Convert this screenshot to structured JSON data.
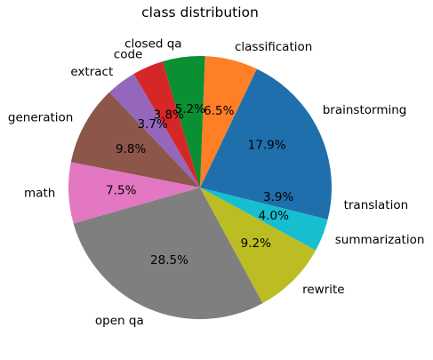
{
  "chart_data": {
    "type": "pie",
    "title": "class distribution",
    "start_angle_deg": 0,
    "direction": "counterclockwise",
    "slices": [
      {
        "label": "brainstorming",
        "pct_label": "17.9%",
        "value": 17.9,
        "color": "#1f6fad"
      },
      {
        "label": "classification",
        "pct_label": "6.5%",
        "value": 6.5,
        "color": "#ff7f27"
      },
      {
        "label": "closed qa",
        "pct_label": "5.2%",
        "value": 5.2,
        "color": "#0a8f33"
      },
      {
        "label": "code",
        "pct_label": "3.8%",
        "value": 3.8,
        "color": "#d62728"
      },
      {
        "label": "extract",
        "pct_label": "3.7%",
        "value": 3.7,
        "color": "#9467bd"
      },
      {
        "label": "generation",
        "pct_label": "9.8%",
        "value": 9.8,
        "color": "#8c564b"
      },
      {
        "label": "math",
        "pct_label": "7.5%",
        "value": 7.5,
        "color": "#e377c2"
      },
      {
        "label": "open qa",
        "pct_label": "28.5%",
        "value": 28.5,
        "color": "#7f7f7f"
      },
      {
        "label": "rewrite",
        "pct_label": "9.2%",
        "value": 9.2,
        "color": "#bcbd22"
      },
      {
        "label": "summarization",
        "pct_label": "4.0%",
        "value": 4.0,
        "color": "#17becf"
      },
      {
        "label": "translation",
        "pct_label": "3.9%",
        "value": 3.9,
        "color": "#1f6fad"
      }
    ]
  }
}
